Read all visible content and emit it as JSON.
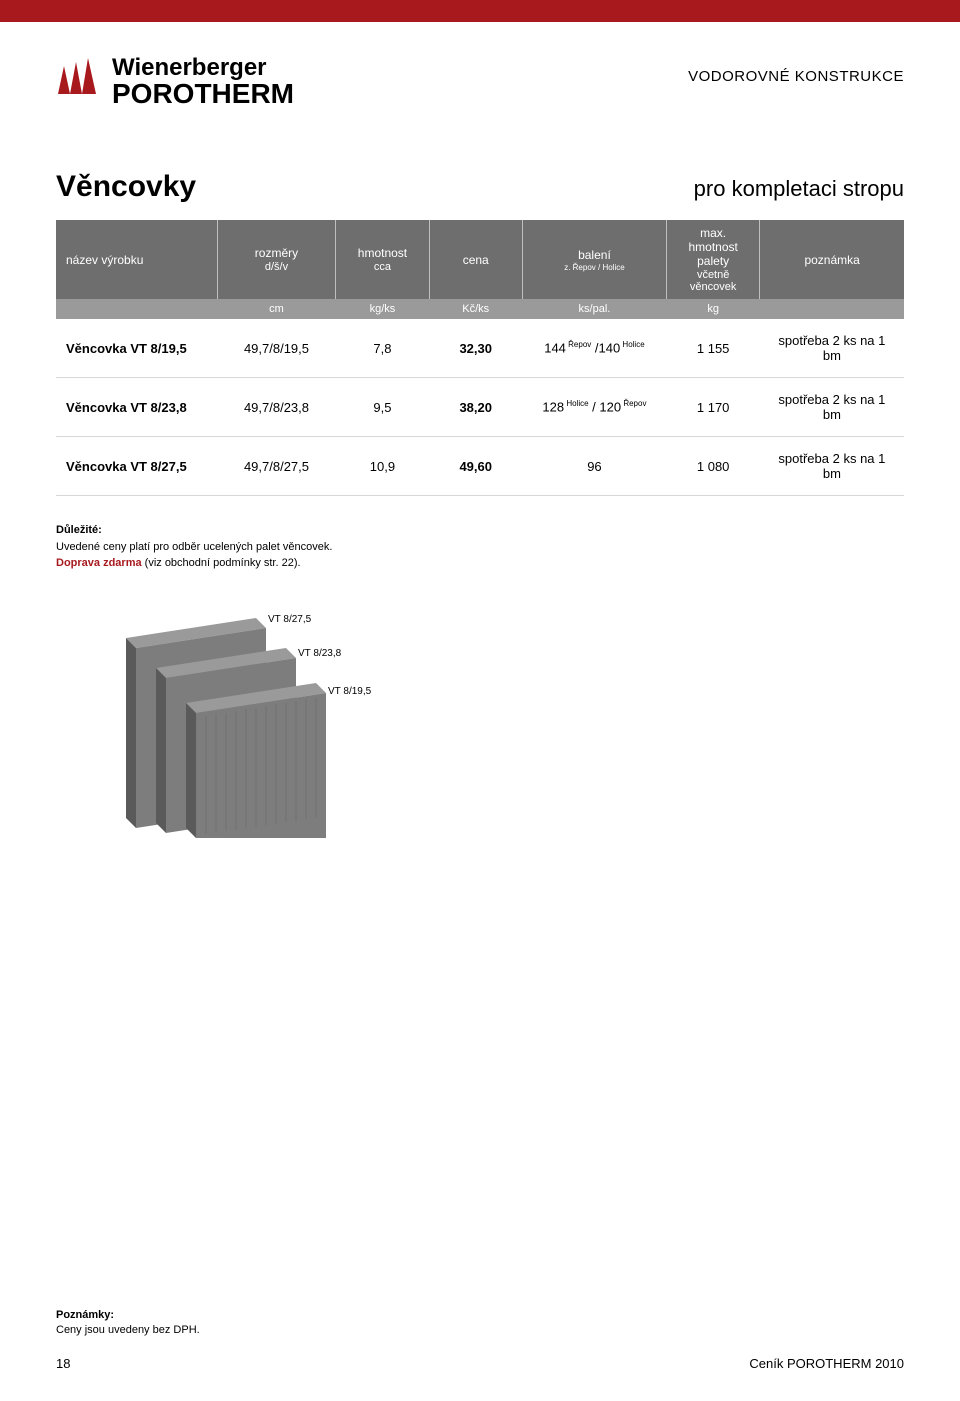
{
  "brand": {
    "line1": "Wienerberger",
    "line2": "POROTHERM"
  },
  "category": "VODOROVNÉ KONSTRUKCE",
  "title": {
    "left": "Věncovky",
    "right": "pro kompletaci stropu"
  },
  "table": {
    "header1": {
      "name": "název výrobku",
      "dim": "rozměry",
      "dim_sub": "d/š/v",
      "weight": "hmotnost",
      "weight_sub": "cca",
      "price": "cena",
      "pack": "balení",
      "pack_sub": "z. Řepov / Holice",
      "max": "max. hmotnost palety",
      "max_sub": "včetně věncovek",
      "note": "poznámka"
    },
    "header2": {
      "dim": "cm",
      "weight": "kg/ks",
      "price": "Kč/ks",
      "pack": "ks/pal.",
      "max": "kg"
    },
    "rows": [
      {
        "name": "Věncovka VT 8/19,5",
        "dim": "49,7/8/19,5",
        "weight": "7,8",
        "price": "32,30",
        "pack_a": "144",
        "pack_a_sup": "Řepov",
        "pack_b": "/140",
        "pack_b_sup": "Holice",
        "max": "1 155",
        "note": "spotřeba 2 ks na 1 bm"
      },
      {
        "name": "Věncovka VT 8/23,8",
        "dim": "49,7/8/23,8",
        "weight": "9,5",
        "price": "38,20",
        "pack_a": "128",
        "pack_a_sup": "Holice",
        "pack_b": "/ 120",
        "pack_b_sup": "Řepov",
        "max": "1 170",
        "note": "spotřeba 2 ks na 1 bm"
      },
      {
        "name": "Věncovka VT 8/27,5",
        "dim": "49,7/8/27,5",
        "weight": "10,9",
        "price": "49,60",
        "pack_a": "96",
        "pack_a_sup": "",
        "pack_b": "",
        "pack_b_sup": "",
        "max": "1 080",
        "note": "spotřeba 2 ks na 1 bm"
      }
    ]
  },
  "important": {
    "label": "Důležité:",
    "line1": "Uvedené ceny platí pro odběr ucelených palet věncovek.",
    "line2a": "Doprava zdarma",
    "line2b": " (viz obchodní podmínky str. 22)."
  },
  "brick_labels": {
    "a": "VT 8/27,5",
    "b": "VT 8/23,8",
    "c": "VT 8/19,5"
  },
  "footer": {
    "note_label": "Poznámky:",
    "note_text": "Ceny jsou uvedeny bez DPH.",
    "page": "18",
    "right": "Ceník POROTHERM 2010"
  },
  "colors": {
    "brand_red": "#a8191e",
    "header_dark": "#6e6e6e",
    "header_light": "#9a9a9a",
    "brick": "#7d7d7d",
    "brick_dark": "#5a5a5a",
    "brick_light": "#9a9a9a"
  }
}
